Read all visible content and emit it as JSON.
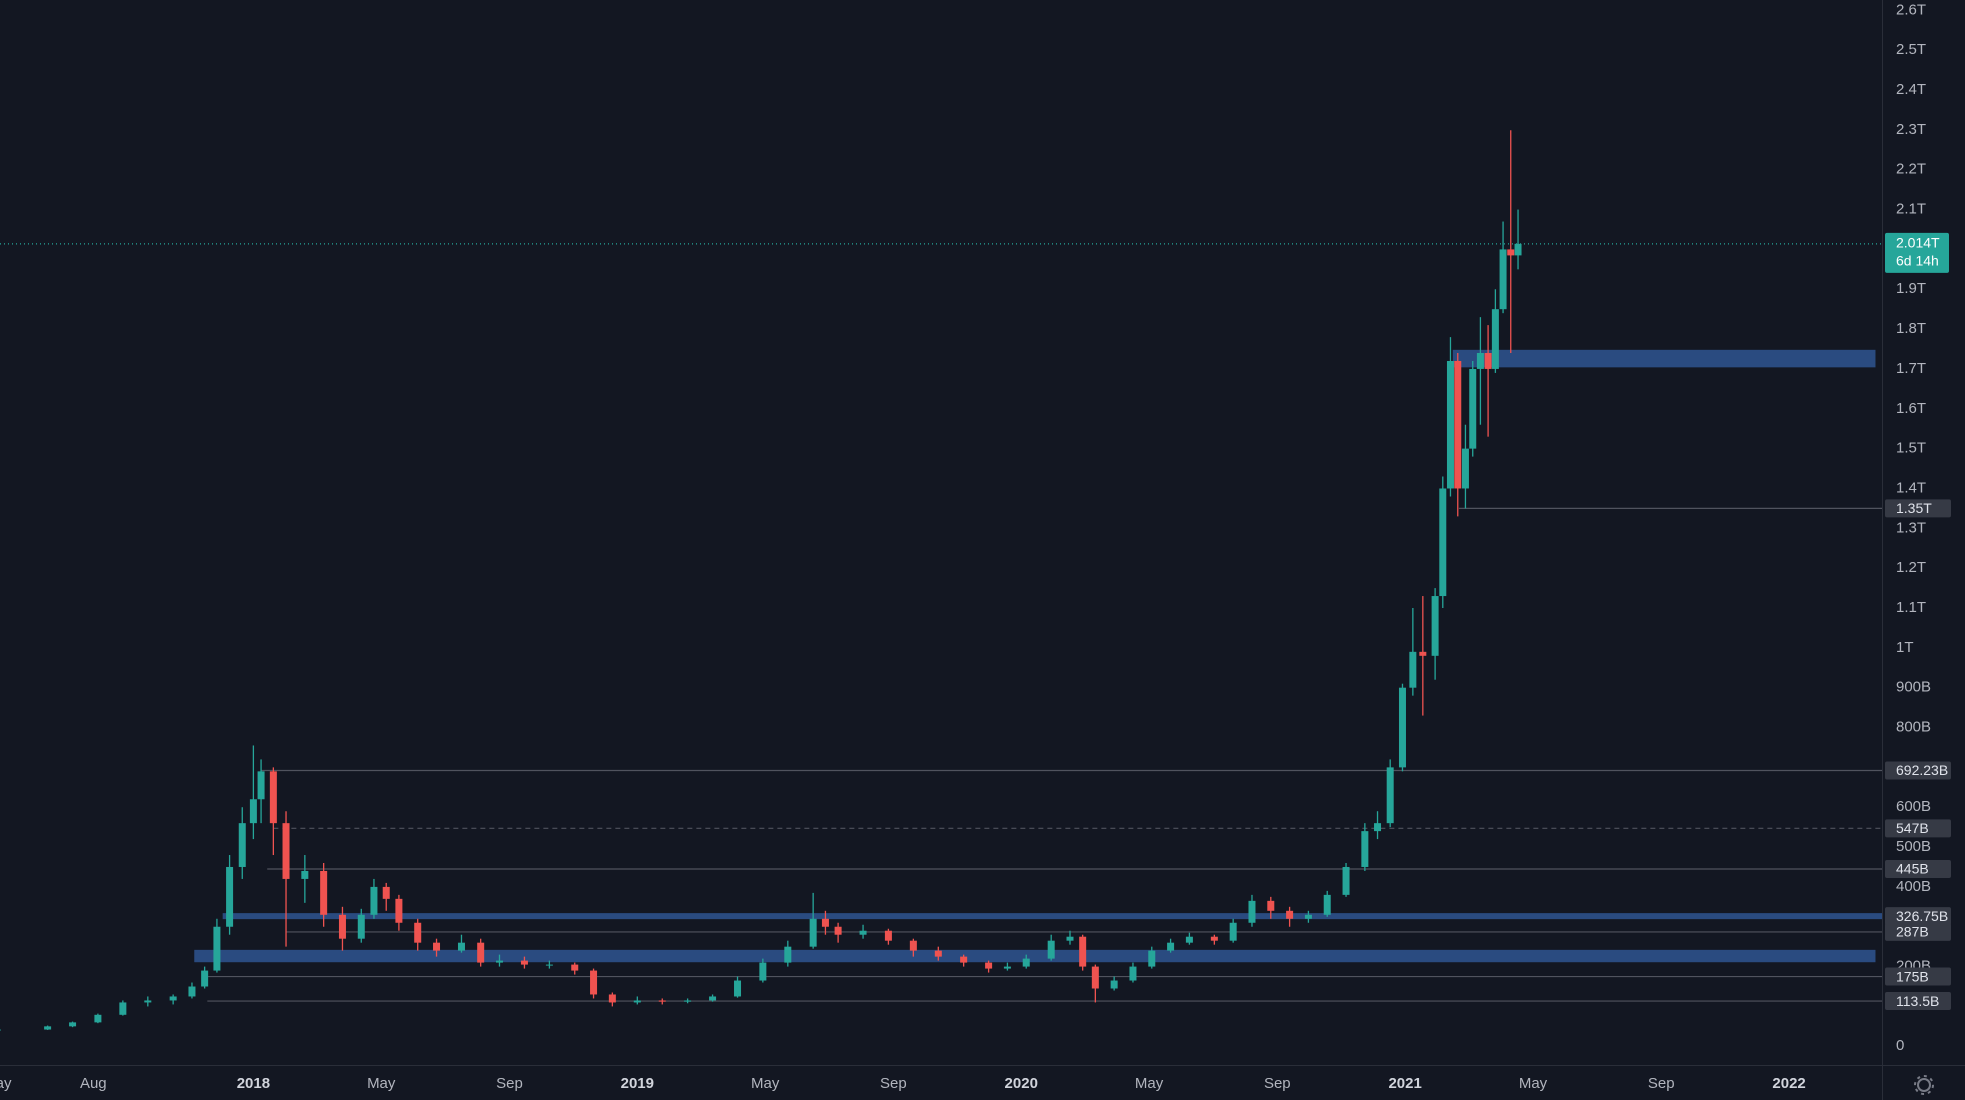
{
  "chart_data": {
    "type": "candlestick",
    "up_color": "#26a69a",
    "down_color": "#ef5350",
    "xlim": [
      2017.34,
      2022.242
    ],
    "xticks": [
      {
        "value": 2017.333,
        "label": "May"
      },
      {
        "value": 2017.583,
        "label": "Aug"
      },
      2018,
      {
        "value": 2018.333,
        "label": "May"
      },
      {
        "value": 2018.667,
        "label": "Sep"
      },
      2019,
      {
        "value": 2019.333,
        "label": "May"
      },
      {
        "value": 2019.667,
        "label": "Sep"
      },
      2020,
      {
        "value": 2020.333,
        "label": "May"
      },
      {
        "value": 2020.667,
        "label": "Sep"
      },
      2021,
      {
        "value": 2021.333,
        "label": "May"
      },
      {
        "value": 2021.667,
        "label": "Sep"
      },
      2022
    ],
    "ylim": [
      -47,
      2626
    ],
    "yticks": [
      0,
      {
        "value": 200,
        "label": "200B"
      },
      {
        "value": 400,
        "label": "400B"
      },
      {
        "value": 500,
        "label": "500B"
      },
      {
        "value": 600,
        "label": "600B"
      },
      {
        "value": 800,
        "label": "800B"
      },
      {
        "value": 900,
        "label": "900B"
      },
      {
        "value": 1000,
        "label": "1T"
      },
      {
        "value": 1100,
        "label": "1.1T"
      },
      {
        "value": 1200,
        "label": "1.2T"
      },
      {
        "value": 1300,
        "label": "1.3T"
      },
      {
        "value": 1400,
        "label": "1.4T"
      },
      {
        "value": 1500,
        "label": "1.5T"
      },
      {
        "value": 1600,
        "label": "1.6T"
      },
      {
        "value": 1700,
        "label": "1.7T"
      },
      {
        "value": 1800,
        "label": "1.8T"
      },
      {
        "value": 1900,
        "label": "1.9T"
      },
      {
        "value": 2100,
        "label": "2.1T"
      },
      {
        "value": 2200,
        "label": "2.2T"
      },
      {
        "value": 2300,
        "label": "2.3T"
      },
      {
        "value": 2400,
        "label": "2.4T"
      },
      {
        "value": 2500,
        "label": "2.5T"
      },
      {
        "value": 2600,
        "label": "2.6T"
      }
    ],
    "x": [
      2017.333,
      2017.464,
      2017.529,
      2017.595,
      2017.66,
      2017.725,
      2017.791,
      2017.84,
      2017.873,
      2017.905,
      2017.938,
      2017.971,
      2018.0,
      2018.02,
      2018.052,
      2018.085,
      2018.134,
      2018.183,
      2018.232,
      2018.281,
      2018.314,
      2018.346,
      2018.379,
      2018.428,
      2018.477,
      2018.542,
      2018.592,
      2018.641,
      2018.706,
      2018.771,
      2018.837,
      2018.886,
      2018.935,
      2019.0,
      2019.065,
      2019.131,
      2019.196,
      2019.261,
      2019.327,
      2019.392,
      2019.458,
      2019.49,
      2019.523,
      2019.588,
      2019.654,
      2019.719,
      2019.784,
      2019.85,
      2019.915,
      2019.964,
      2020.013,
      2020.078,
      2020.127,
      2020.16,
      2020.193,
      2020.242,
      2020.291,
      2020.34,
      2020.389,
      2020.438,
      2020.503,
      2020.552,
      2020.601,
      2020.65,
      2020.699,
      2020.748,
      2020.797,
      2020.846,
      2020.895,
      2020.928,
      2020.961,
      2020.993,
      2021.02,
      2021.046,
      2021.078,
      2021.098,
      2021.118,
      2021.137,
      2021.157,
      2021.176,
      2021.196,
      2021.216,
      2021.235,
      2021.255,
      2021.275,
      2021.294
    ],
    "open": [
      40,
      42,
      50,
      60,
      79,
      110,
      115,
      125,
      150,
      190,
      300,
      450,
      560,
      620,
      690,
      560,
      420,
      440,
      330,
      270,
      330,
      400,
      370,
      310,
      260,
      240,
      260,
      210,
      215,
      205,
      205,
      190,
      130,
      110,
      115,
      112,
      115,
      125,
      165,
      210,
      250,
      320,
      300,
      280,
      290,
      265,
      240,
      225,
      210,
      195,
      200,
      220,
      265,
      275,
      200,
      145,
      165,
      200,
      240,
      260,
      275,
      265,
      310,
      365,
      340,
      320,
      330,
      380,
      450,
      540,
      560,
      700,
      900,
      990,
      980,
      1130,
      1400,
      1720,
      1400,
      1500,
      1700,
      1740,
      1700,
      1850,
      2000,
      1985
    ],
    "high": [
      46,
      52,
      62,
      82,
      115,
      125,
      130,
      160,
      200,
      320,
      480,
      600,
      755,
      720,
      700,
      590,
      480,
      460,
      350,
      345,
      420,
      410,
      380,
      320,
      270,
      280,
      270,
      230,
      225,
      215,
      210,
      195,
      135,
      125,
      120,
      120,
      130,
      175,
      220,
      265,
      385,
      340,
      310,
      305,
      295,
      270,
      250,
      230,
      215,
      210,
      230,
      280,
      290,
      280,
      205,
      175,
      210,
      250,
      270,
      285,
      280,
      320,
      380,
      375,
      350,
      340,
      390,
      460,
      560,
      590,
      720,
      910,
      1100,
      1130,
      1150,
      1430,
      1780,
      1740,
      1560,
      1720,
      1830,
      1810,
      1900,
      2070,
      2299,
      2100
    ],
    "low": [
      38,
      41,
      48,
      58,
      77,
      100,
      105,
      120,
      145,
      185,
      280,
      420,
      520,
      560,
      480,
      250,
      360,
      300,
      240,
      260,
      320,
      340,
      290,
      240,
      225,
      235,
      200,
      200,
      195,
      195,
      180,
      120,
      100,
      105,
      105,
      108,
      112,
      122,
      160,
      200,
      245,
      280,
      260,
      270,
      255,
      225,
      215,
      200,
      185,
      190,
      195,
      215,
      255,
      190,
      110,
      140,
      160,
      195,
      235,
      255,
      255,
      260,
      300,
      320,
      300,
      310,
      325,
      375,
      440,
      520,
      550,
      690,
      880,
      830,
      920,
      1100,
      1380,
      1330,
      1350,
      1480,
      1560,
      1530,
      1690,
      1840,
      1740,
      1950
    ],
    "close": [
      42,
      50,
      60,
      79,
      110,
      115,
      125,
      150,
      190,
      300,
      450,
      560,
      620,
      690,
      560,
      420,
      440,
      330,
      270,
      330,
      400,
      370,
      310,
      260,
      240,
      260,
      210,
      215,
      205,
      205,
      190,
      130,
      110,
      115,
      112,
      115,
      125,
      165,
      210,
      250,
      320,
      300,
      280,
      290,
      265,
      240,
      225,
      210,
      195,
      200,
      220,
      265,
      275,
      200,
      145,
      165,
      200,
      240,
      260,
      275,
      265,
      310,
      365,
      340,
      320,
      330,
      380,
      450,
      540,
      560,
      700,
      900,
      990,
      980,
      1130,
      1400,
      1720,
      1400,
      1500,
      1700,
      1740,
      1700,
      1850,
      2000,
      1985,
      2014
    ],
    "zones": [
      {
        "from": 2017.846,
        "to": 2022.225,
        "top": 242,
        "bottom": 211,
        "color": "#2a4b80"
      },
      {
        "from": 2021.124,
        "to": 2022.225,
        "top": 1748,
        "bottom": 1704,
        "color": "#2a4b80"
      }
    ],
    "levels": [
      {
        "value": 113.5,
        "label": "113.5B",
        "from": 2017.88,
        "color": "#50535e"
      },
      {
        "value": 175,
        "label": "175B",
        "from": 2017.87,
        "color": "#50535e"
      },
      {
        "value": 287,
        "label": "287B",
        "from": 2018.085,
        "color": "#50535e"
      },
      {
        "value": 326.75,
        "label": "326.75B",
        "from": 2017.92,
        "color": "#2a4b80"
      },
      {
        "value": 445,
        "label": "445B",
        "from": 2018.036,
        "color": "#50535e"
      },
      {
        "value": 547,
        "label": "547B",
        "from": 2018.052,
        "color": "#50535e",
        "dashed": true
      },
      {
        "value": 692.23,
        "label": "692.23B",
        "from": 2018.02,
        "color": "#50535e"
      },
      {
        "value": 1350,
        "label": "1.35T",
        "from": 2021.14,
        "color": "#50535e"
      }
    ],
    "last_price": {
      "value": 2014,
      "label": "2.014T",
      "countdown": "6d 14h",
      "color": "#26a69a"
    }
  }
}
